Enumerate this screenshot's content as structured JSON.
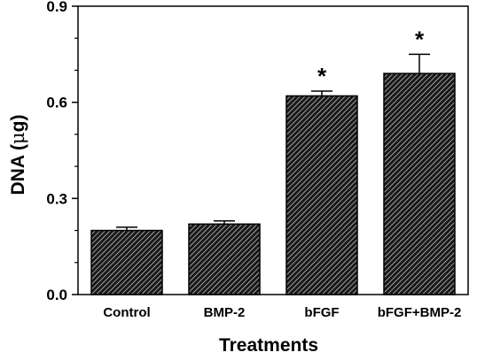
{
  "chart_data": {
    "type": "bar",
    "categories": [
      "Control",
      "BMP-2",
      "bFGF",
      "bFGF+BMP-2"
    ],
    "values": [
      0.2,
      0.22,
      0.62,
      0.69
    ],
    "errors": [
      0.01,
      0.01,
      0.015,
      0.06
    ],
    "significance": [
      "",
      "",
      "*",
      "*"
    ],
    "xlabel": "Treatments",
    "ylabel_main": "DNA (",
    "ylabel_mu": "μ",
    "ylabel_unit": "g)",
    "ylim": [
      0.0,
      0.9
    ],
    "yticks": [
      0.0,
      0.3,
      0.6,
      0.9
    ],
    "ytick_labels": [
      "0.0",
      "0.3",
      "0.6",
      "0.9"
    ],
    "yminor_ticks": [
      0.1,
      0.2,
      0.4,
      0.5,
      0.7,
      0.8
    ],
    "grid": false,
    "bar_fill": "hatched",
    "bar_color": "#1a1a1a",
    "hatch_color": "#ffffff",
    "axis_color": "#000000"
  }
}
